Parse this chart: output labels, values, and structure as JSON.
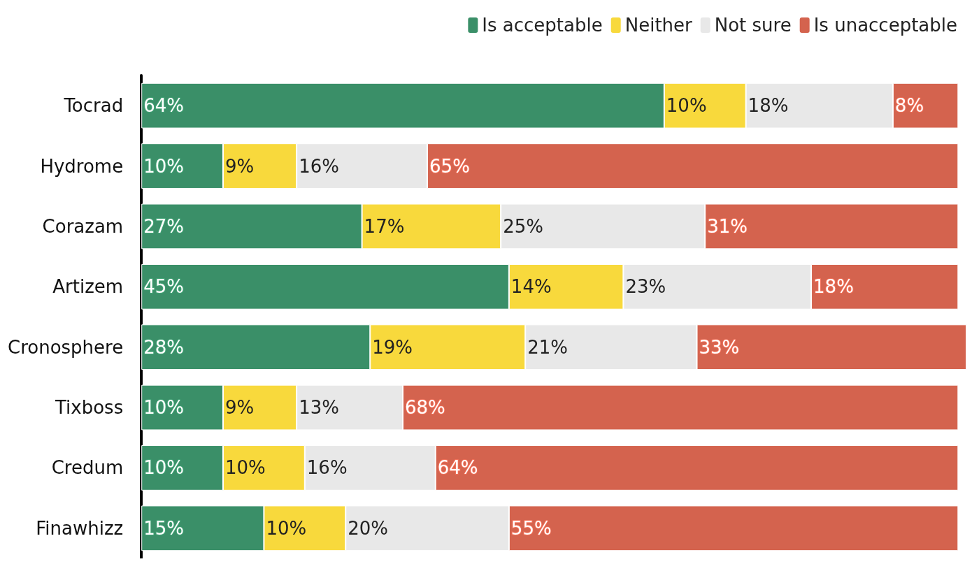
{
  "chart_data": {
    "type": "bar",
    "orientation": "horizontal",
    "stacked": true,
    "legend": "top right",
    "categories": [
      "Tocrad",
      "Hydrome",
      "Corazam",
      "Artizem",
      "Cronosphere",
      "Tixboss",
      "Credum",
      "Finawhizz"
    ],
    "series": [
      {
        "name": "Is acceptable",
        "color": "#3a8f68",
        "values": [
          64,
          10,
          27,
          45,
          28,
          10,
          10,
          15
        ],
        "value_labels": [
          "64%",
          "10%",
          "27%",
          "45%",
          "28%",
          "10%",
          "10%",
          "15%"
        ]
      },
      {
        "name": "Neither",
        "color": "#f8d93c",
        "values": [
          10,
          9,
          17,
          14,
          19,
          9,
          10,
          10
        ],
        "value_labels": [
          "10%",
          "9%",
          "17%",
          "14%",
          "19%",
          "9%",
          "10%",
          "10%"
        ]
      },
      {
        "name": "Not sure",
        "color": "#e8e8e8",
        "values": [
          18,
          16,
          25,
          23,
          21,
          13,
          16,
          20
        ],
        "value_labels": [
          "18%",
          "16%",
          "25%",
          "23%",
          "21%",
          "13%",
          "16%",
          "20%"
        ]
      },
      {
        "name": "Is unacceptable",
        "color": "#d4634e",
        "values": [
          8,
          65,
          31,
          18,
          33,
          68,
          64,
          55
        ],
        "value_labels": [
          "8%",
          "65%",
          "31%",
          "18%",
          "33%",
          "68%",
          "64%",
          "55%"
        ]
      }
    ]
  }
}
